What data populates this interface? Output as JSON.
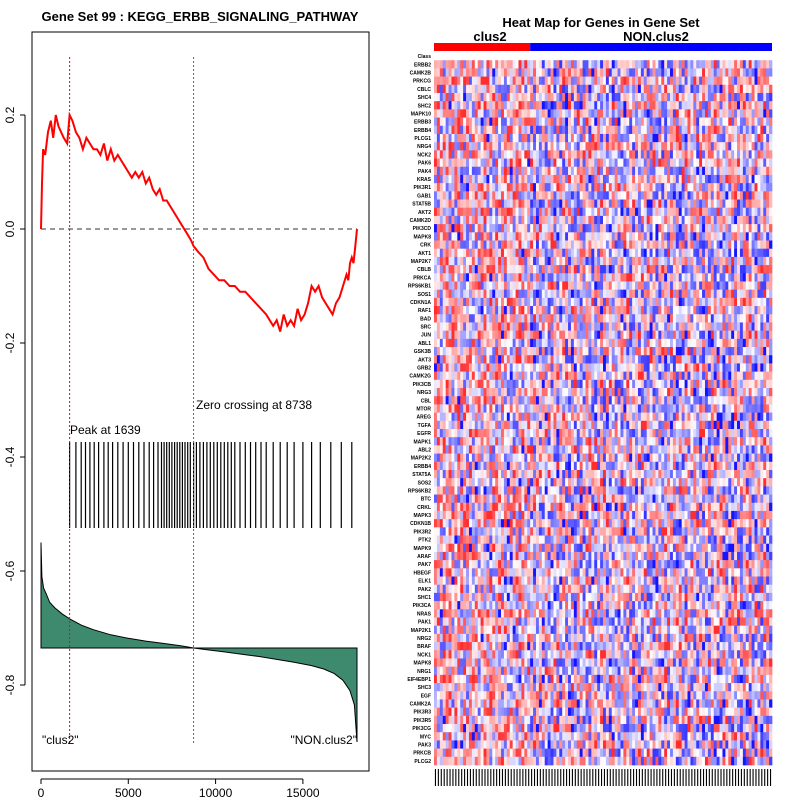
{
  "chart_data": [
    {
      "type": "line",
      "title": "Gene Set  99 : KEGG_ERBB_SIGNALING_PATHWAY",
      "xlabel": "",
      "ylabel": "",
      "xlim": [
        0,
        18500
      ],
      "ylim": [
        -0.95,
        0.3
      ],
      "x_ticks": [
        0,
        5000,
        10000,
        15000
      ],
      "x_tick_labels": [
        "0",
        "5000",
        "10000",
        "15000"
      ],
      "y_ticks": [
        0.2,
        0.0,
        -0.2,
        -0.4,
        -0.6,
        -0.8
      ],
      "y_tick_labels": [
        "0.2",
        "0.0",
        "-0.2",
        "-0.4",
        "-0.6",
        "-0.8"
      ],
      "peak": {
        "x": 1639,
        "label": "Peak at 1639"
      },
      "zero_crossing": {
        "x": 8738,
        "label": "Zero crossing at 8738"
      },
      "left_label": "\"clus2\"",
      "right_label": "\"NON.clus2\"",
      "colors": {
        "es_line": "#ff0000",
        "peak_line": "#ff0000",
        "zero_line": "#00aa00",
        "fill": "#3d8a6e"
      },
      "running_es": {
        "x": [
          0,
          60,
          120,
          240,
          400,
          560,
          700,
          850,
          1000,
          1150,
          1300,
          1500,
          1639,
          1800,
          2000,
          2200,
          2400,
          2600,
          2800,
          3000,
          3200,
          3400,
          3600,
          3800,
          4000,
          4200,
          4400,
          4600,
          4800,
          5000,
          5200,
          5400,
          5600,
          5800,
          6000,
          6200,
          6400,
          6600,
          6800,
          7000,
          7200,
          7400,
          7600,
          7800,
          8000,
          8200,
          8400,
          8600,
          8738,
          9000,
          9300,
          9600,
          9900,
          10200,
          10500,
          10800,
          11100,
          11400,
          11700,
          12000,
          12300,
          12600,
          12900,
          13100,
          13300,
          13500,
          13700,
          13900,
          14100,
          14300,
          14500,
          14700,
          14900,
          15100,
          15300,
          15500,
          15700,
          15900,
          16100,
          16300,
          16500,
          16700,
          16900,
          17100,
          17300,
          17500,
          17600,
          17700,
          17800,
          17900,
          18000,
          18100
        ],
        "y": [
          0.0,
          0.08,
          0.14,
          0.13,
          0.17,
          0.19,
          0.16,
          0.2,
          0.18,
          0.17,
          0.16,
          0.15,
          0.2,
          0.19,
          0.17,
          0.16,
          0.14,
          0.16,
          0.15,
          0.14,
          0.14,
          0.13,
          0.15,
          0.12,
          0.14,
          0.12,
          0.13,
          0.12,
          0.11,
          0.1,
          0.09,
          0.1,
          0.09,
          0.1,
          0.08,
          0.09,
          0.07,
          0.06,
          0.07,
          0.05,
          0.05,
          0.04,
          0.03,
          0.02,
          0.01,
          0.0,
          -0.01,
          -0.02,
          -0.03,
          -0.04,
          -0.05,
          -0.07,
          -0.08,
          -0.09,
          -0.09,
          -0.1,
          -0.1,
          -0.11,
          -0.11,
          -0.12,
          -0.13,
          -0.14,
          -0.15,
          -0.16,
          -0.17,
          -0.16,
          -0.18,
          -0.15,
          -0.17,
          -0.16,
          -0.17,
          -0.14,
          -0.16,
          -0.15,
          -0.13,
          -0.1,
          -0.11,
          -0.1,
          -0.12,
          -0.13,
          -0.14,
          -0.15,
          -0.13,
          -0.12,
          -0.1,
          -0.08,
          -0.09,
          -0.06,
          -0.05,
          -0.06,
          -0.03,
          0.0
        ]
      },
      "hit_positions": [
        1639,
        2000,
        2300,
        2550,
        2800,
        3050,
        3300,
        3600,
        3850,
        4100,
        4400,
        4700,
        5000,
        5300,
        5600,
        5900,
        6200,
        6450,
        6700,
        6900,
        7050,
        7200,
        7350,
        7500,
        7650,
        7800,
        7950,
        8100,
        8250,
        8400,
        8550,
        8738,
        8900,
        9100,
        9300,
        9500,
        9700,
        9900,
        10100,
        10300,
        10500,
        10700,
        10900,
        11100,
        11400,
        11700,
        12000,
        12300,
        12600,
        12900,
        13300,
        13700,
        14100,
        14500,
        15000,
        15500,
        16000,
        16600,
        17200,
        17800
      ],
      "ranked_metric": {
        "x": [
          0,
          50,
          150,
          300,
          500,
          800,
          1200,
          1700,
          2300,
          3000,
          4000,
          5000,
          6000,
          7000,
          8000,
          8738,
          9500,
          10500,
          11500,
          12500,
          13500,
          14500,
          15500,
          16200,
          16800,
          17300,
          17700,
          17950,
          18100
        ],
        "y": [
          -0.55,
          -0.61,
          -0.63,
          -0.64,
          -0.655,
          -0.665,
          -0.675,
          -0.685,
          -0.695,
          -0.703,
          -0.712,
          -0.718,
          -0.723,
          -0.727,
          -0.731,
          -0.735,
          -0.738,
          -0.742,
          -0.746,
          -0.75,
          -0.755,
          -0.76,
          -0.766,
          -0.772,
          -0.78,
          -0.792,
          -0.81,
          -0.835,
          -0.9
        ]
      },
      "baseline_y": -0.735
    },
    {
      "type": "heatmap",
      "title": "Heat Map for Genes in Gene Set",
      "group_labels": [
        "clus2",
        "NON.clus2"
      ],
      "group_colors": [
        "#ff0000",
        "#0000ff"
      ],
      "class_row_label": "Class",
      "n_samples": 116,
      "n_group1": 33,
      "genes": [
        "ERBB2",
        "CAMK2B",
        "PRKCG",
        "CBLC",
        "SHC4",
        "SHC2",
        "MAPK10",
        "ERBB3",
        "ERBB4",
        "PLCG1",
        "NRG4",
        "NCK2",
        "PAK6",
        "PAK4",
        "KRAS",
        "PIK3R1",
        "GAB1",
        "STAT5B",
        "AKT2",
        "CAMK2D",
        "PIK3CD",
        "MAPK8",
        "CRK",
        "AKT1",
        "MAP2K7",
        "CBLB",
        "PRKCA",
        "RPS6KB1",
        "SOS1",
        "CDKN1A",
        "RAF1",
        "BAD",
        "SRC",
        "JUN",
        "ABL1",
        "GSK3B",
        "AKT3",
        "GRB2",
        "CAMK2G",
        "PIK3CB",
        "NRG3",
        "CBL",
        "MTOR",
        "AREG",
        "TGFA",
        "EGFR",
        "MAPK1",
        "ABL2",
        "MAP2K2",
        "ERBB4",
        "STAT5A",
        "SOS2",
        "RPS6KB2",
        "BTC",
        "CRKL",
        "MAPK3",
        "CDKN1B",
        "PIK3R2",
        "PTK2",
        "MAPK9",
        "ARAF",
        "PAK7",
        "HBEGF",
        "ELK1",
        "PAK2",
        "SHC1",
        "PIK3CA",
        "NRAS",
        "PAK1",
        "MAP2K1",
        "NRG2",
        "BRAF",
        "NCK1",
        "MAPK8",
        "NRG1",
        "EIF4EBP1",
        "SHC3",
        "EGF",
        "CAMK2A",
        "PIK3R3",
        "PIK3R5",
        "PIK3CG",
        "MYC",
        "PAK3",
        "PRKCB",
        "PLCG2"
      ]
    }
  ]
}
